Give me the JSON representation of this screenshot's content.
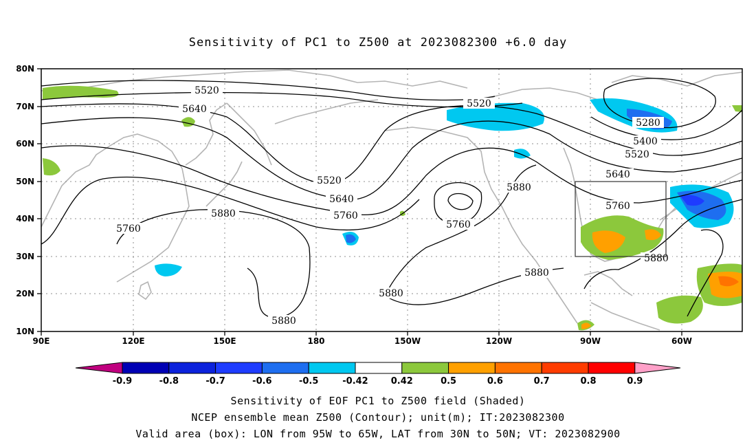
{
  "title": "Sensitivity of PC1 to Z500 at 2023082300 +6.0 day",
  "map": {
    "lat_labels": [
      "80N",
      "70N",
      "60N",
      "50N",
      "40N",
      "30N",
      "20N",
      "10N"
    ],
    "lon_labels": [
      "90E",
      "120E",
      "150E",
      "180",
      "150W",
      "120W",
      "90W",
      "60W"
    ],
    "valid_box": {
      "lon_from": "95W",
      "lon_to": "65W",
      "lat_from": "30N",
      "lat_to": "50N"
    },
    "contour_labels": [
      "5520",
      "5640",
      "5520",
      "5280",
      "5400",
      "5520",
      "5640",
      "5760",
      "5520",
      "5640",
      "5760",
      "5760",
      "5880",
      "5760",
      "5880",
      "5880",
      "5880",
      "5880",
      "5880"
    ]
  },
  "colorbar": {
    "labels": [
      "-0.9",
      "-0.8",
      "-0.7",
      "-0.6",
      "-0.5",
      "-0.42",
      "0.42",
      "0.5",
      "0.6",
      "0.7",
      "0.8",
      "0.9"
    ],
    "colors": [
      "#c0007f",
      "#0000b4",
      "#0c22dc",
      "#1e3cff",
      "#1e6ef0",
      "#1e96f0",
      "#00c8f0",
      "#ffffff",
      "#8cc83c",
      "#ffa000",
      "#ff7300",
      "#ff3c00",
      "#ff0000",
      "#ffa0c8"
    ]
  },
  "captions": [
    "Sensitivity of EOF PC1 to Z500 field (Shaded)",
    "NCEP ensemble mean Z500 (Contour); unit(m); IT:2023082300",
    "Valid area (box): LON from 95W to 65W, LAT from 30N to 50N; VT: 2023082900"
  ]
}
